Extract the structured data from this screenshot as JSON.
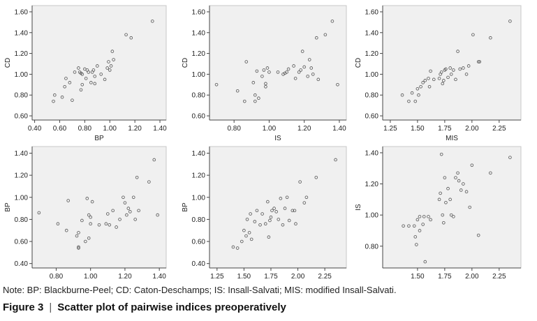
{
  "note": "Note: BP: Blackburne-Peel; CD: Caton-Deschamps; IS: Insall-Salvati; MIS: modified Insall-Salvati.",
  "caption": {
    "label": "Figure 3",
    "title": "Scatter plot of pairwise indices preoperatively"
  },
  "colors": {
    "plot_bg": "#f0f0f0",
    "point_stroke": "#555555",
    "frame": "#c8c8c8"
  },
  "chart_data": [
    {
      "type": "scatter",
      "xlabel": "BP",
      "ylabel": "CD",
      "xlim": [
        0.38,
        1.45
      ],
      "ylim": [
        0.56,
        1.66
      ],
      "xticks": [
        "0.40",
        "0.60",
        "0.80",
        "1.00",
        "1.20",
        "1.40"
      ],
      "yticks": [
        "0.60",
        "0.80",
        "1.00",
        "1.20",
        "1.40",
        "1.60"
      ],
      "points": [
        [
          0.55,
          0.74
        ],
        [
          0.56,
          0.8
        ],
        [
          0.62,
          0.78
        ],
        [
          0.64,
          0.88
        ],
        [
          0.65,
          0.96
        ],
        [
          0.68,
          0.92
        ],
        [
          0.7,
          0.75
        ],
        [
          0.72,
          1.02
        ],
        [
          0.75,
          1.06
        ],
        [
          0.76,
          1.02
        ],
        [
          0.77,
          1.01
        ],
        [
          0.77,
          0.85
        ],
        [
          0.78,
          0.9
        ],
        [
          0.78,
          1.0
        ],
        [
          0.8,
          1.05
        ],
        [
          0.81,
          0.96
        ],
        [
          0.82,
          1.04
        ],
        [
          0.83,
          1.02
        ],
        [
          0.85,
          0.92
        ],
        [
          0.86,
          1.02
        ],
        [
          0.87,
          1.04
        ],
        [
          0.88,
          0.98
        ],
        [
          0.88,
          0.91
        ],
        [
          0.9,
          1.08
        ],
        [
          0.93,
          1.0
        ],
        [
          0.96,
          0.95
        ],
        [
          0.98,
          1.06
        ],
        [
          0.99,
          1.12
        ],
        [
          1.0,
          1.04
        ],
        [
          1.01,
          1.08
        ],
        [
          1.02,
          1.22
        ],
        [
          1.03,
          1.14
        ],
        [
          1.13,
          1.38
        ],
        [
          1.17,
          1.35
        ],
        [
          1.34,
          1.51
        ]
      ]
    },
    {
      "type": "scatter",
      "xlabel": "IS",
      "ylabel": "CD",
      "xlim": [
        0.66,
        1.44
      ],
      "ylim": [
        0.56,
        1.66
      ],
      "xticks": [
        "0.80",
        "1.00",
        "1.20",
        "1.40"
      ],
      "yticks": [
        "0.60",
        "0.80",
        "1.00",
        "1.20",
        "1.40",
        "1.60"
      ],
      "points": [
        [
          0.7,
          0.9
        ],
        [
          0.82,
          0.84
        ],
        [
          0.86,
          0.74
        ],
        [
          0.87,
          1.12
        ],
        [
          0.91,
          0.92
        ],
        [
          0.92,
          0.8
        ],
        [
          0.92,
          0.74
        ],
        [
          0.93,
          1.03
        ],
        [
          0.94,
          0.77
        ],
        [
          0.96,
          0.98
        ],
        [
          0.97,
          1.04
        ],
        [
          0.98,
          0.91
        ],
        [
          0.98,
          0.88
        ],
        [
          0.99,
          1.06
        ],
        [
          1.0,
          1.02
        ],
        [
          1.05,
          1.02
        ],
        [
          1.08,
          1.0
        ],
        [
          1.09,
          1.01
        ],
        [
          1.1,
          1.02
        ],
        [
          1.11,
          1.05
        ],
        [
          1.14,
          1.08
        ],
        [
          1.15,
          0.96
        ],
        [
          1.17,
          1.02
        ],
        [
          1.18,
          1.04
        ],
        [
          1.19,
          1.22
        ],
        [
          1.2,
          1.07
        ],
        [
          1.22,
          0.98
        ],
        [
          1.23,
          1.14
        ],
        [
          1.24,
          1.06
        ],
        [
          1.25,
          1.0
        ],
        [
          1.27,
          1.35
        ],
        [
          1.28,
          0.95
        ],
        [
          1.32,
          1.38
        ],
        [
          1.36,
          1.51
        ],
        [
          1.39,
          0.9
        ]
      ]
    },
    {
      "type": "scatter",
      "xlabel": "MIS",
      "ylabel": "CD",
      "xlim": [
        1.18,
        2.45
      ],
      "ylim": [
        0.56,
        1.66
      ],
      "xticks": [
        "1.25",
        "1.50",
        "1.75",
        "2.00",
        "2.25"
      ],
      "yticks": [
        "0.60",
        "0.80",
        "1.00",
        "1.20",
        "1.40",
        "1.60"
      ],
      "points": [
        [
          1.36,
          0.8
        ],
        [
          1.42,
          0.74
        ],
        [
          1.45,
          0.82
        ],
        [
          1.48,
          0.74
        ],
        [
          1.5,
          0.86
        ],
        [
          1.51,
          0.8
        ],
        [
          1.53,
          0.88
        ],
        [
          1.55,
          0.92
        ],
        [
          1.57,
          0.94
        ],
        [
          1.6,
          0.96
        ],
        [
          1.61,
          0.88
        ],
        [
          1.62,
          1.03
        ],
        [
          1.65,
          0.95
        ],
        [
          1.7,
          0.96
        ],
        [
          1.71,
          1.0
        ],
        [
          1.72,
          1.02
        ],
        [
          1.73,
          0.91
        ],
        [
          1.74,
          0.94
        ],
        [
          1.75,
          1.04
        ],
        [
          1.76,
          1.05
        ],
        [
          1.78,
          0.97
        ],
        [
          1.8,
          1.06
        ],
        [
          1.81,
          1.0
        ],
        [
          1.83,
          1.04
        ],
        [
          1.85,
          0.95
        ],
        [
          1.87,
          1.22
        ],
        [
          1.89,
          1.05
        ],
        [
          1.92,
          1.06
        ],
        [
          1.95,
          1.0
        ],
        [
          1.97,
          1.08
        ],
        [
          2.01,
          1.38
        ],
        [
          2.06,
          1.12
        ],
        [
          2.07,
          1.12
        ],
        [
          2.17,
          1.35
        ],
        [
          2.35,
          1.51
        ]
      ]
    },
    {
      "type": "scatter",
      "xlabel": "IS",
      "ylabel": "BP",
      "xlim": [
        0.66,
        1.44
      ],
      "ylim": [
        0.36,
        1.46
      ],
      "xticks": [
        "0.80",
        "1.00",
        "1.20",
        "1.40"
      ],
      "yticks": [
        "0.40",
        "0.60",
        "0.80",
        "1.00",
        "1.20",
        "1.40"
      ],
      "points": [
        [
          0.7,
          0.86
        ],
        [
          0.81,
          0.76
        ],
        [
          0.86,
          0.7
        ],
        [
          0.87,
          0.97
        ],
        [
          0.92,
          0.65
        ],
        [
          0.93,
          0.55
        ],
        [
          0.93,
          0.54
        ],
        [
          0.93,
          0.68
        ],
        [
          0.95,
          0.79
        ],
        [
          0.97,
          0.6
        ],
        [
          0.98,
          0.99
        ],
        [
          0.99,
          0.84
        ],
        [
          0.99,
          0.63
        ],
        [
          1.0,
          0.82
        ],
        [
          1.0,
          0.76
        ],
        [
          1.01,
          0.96
        ],
        [
          1.05,
          0.75
        ],
        [
          1.09,
          0.76
        ],
        [
          1.1,
          0.85
        ],
        [
          1.11,
          0.75
        ],
        [
          1.13,
          0.88
        ],
        [
          1.15,
          0.73
        ],
        [
          1.17,
          0.8
        ],
        [
          1.19,
          1.0
        ],
        [
          1.2,
          0.95
        ],
        [
          1.21,
          0.84
        ],
        [
          1.22,
          0.9
        ],
        [
          1.23,
          0.87
        ],
        [
          1.25,
          1.0
        ],
        [
          1.26,
          0.8
        ],
        [
          1.27,
          1.18
        ],
        [
          1.28,
          0.88
        ],
        [
          1.34,
          1.14
        ],
        [
          1.37,
          1.34
        ],
        [
          1.39,
          0.84
        ]
      ]
    },
    {
      "type": "scatter",
      "xlabel": "MIS",
      "ylabel": "BP",
      "xlim": [
        1.18,
        2.45
      ],
      "ylim": [
        0.36,
        1.46
      ],
      "xticks": [
        "1.25",
        "1.50",
        "1.75",
        "2.00",
        "2.25"
      ],
      "yticks": [
        "0.40",
        "0.60",
        "0.80",
        "1.00",
        "1.20",
        "1.40"
      ],
      "points": [
        [
          1.4,
          0.55
        ],
        [
          1.44,
          0.54
        ],
        [
          1.48,
          0.6
        ],
        [
          1.5,
          0.7
        ],
        [
          1.52,
          0.65
        ],
        [
          1.53,
          0.8
        ],
        [
          1.55,
          0.68
        ],
        [
          1.56,
          0.85
        ],
        [
          1.57,
          0.62
        ],
        [
          1.6,
          0.78
        ],
        [
          1.62,
          0.88
        ],
        [
          1.65,
          0.75
        ],
        [
          1.67,
          0.85
        ],
        [
          1.7,
          0.76
        ],
        [
          1.72,
          0.96
        ],
        [
          1.73,
          0.64
        ],
        [
          1.74,
          0.79
        ],
        [
          1.75,
          0.82
        ],
        [
          1.76,
          0.88
        ],
        [
          1.78,
          0.9
        ],
        [
          1.8,
          0.87
        ],
        [
          1.82,
          0.8
        ],
        [
          1.84,
          0.99
        ],
        [
          1.86,
          0.75
        ],
        [
          1.88,
          0.9
        ],
        [
          1.9,
          1.0
        ],
        [
          1.92,
          0.79
        ],
        [
          1.95,
          0.88
        ],
        [
          1.97,
          0.88
        ],
        [
          1.98,
          0.76
        ],
        [
          2.02,
          1.14
        ],
        [
          2.06,
          0.95
        ],
        [
          2.08,
          1.0
        ],
        [
          2.17,
          1.18
        ],
        [
          2.35,
          1.34
        ]
      ]
    },
    {
      "type": "scatter",
      "xlabel": "MIS",
      "ylabel": "IS",
      "xlim": [
        1.18,
        2.45
      ],
      "ylim": [
        0.66,
        1.44
      ],
      "xticks": [
        "1.50",
        "1.75",
        "2.00",
        "2.25"
      ],
      "yticks": [
        "0.80",
        "1.00",
        "1.20",
        "1.40"
      ],
      "points": [
        [
          1.37,
          0.93
        ],
        [
          1.42,
          0.93
        ],
        [
          1.47,
          0.93
        ],
        [
          1.48,
          0.86
        ],
        [
          1.49,
          0.81
        ],
        [
          1.5,
          0.97
        ],
        [
          1.52,
          0.99
        ],
        [
          1.52,
          0.9
        ],
        [
          1.55,
          0.94
        ],
        [
          1.56,
          0.99
        ],
        [
          1.57,
          0.7
        ],
        [
          1.6,
          0.99
        ],
        [
          1.62,
          0.97
        ],
        [
          1.7,
          1.1
        ],
        [
          1.71,
          1.14
        ],
        [
          1.72,
          1.39
        ],
        [
          1.73,
          1.0
        ],
        [
          1.74,
          0.95
        ],
        [
          1.75,
          1.24
        ],
        [
          1.76,
          1.08
        ],
        [
          1.78,
          1.17
        ],
        [
          1.8,
          1.1
        ],
        [
          1.81,
          1.0
        ],
        [
          1.83,
          0.99
        ],
        [
          1.85,
          1.24
        ],
        [
          1.87,
          1.27
        ],
        [
          1.88,
          1.22
        ],
        [
          1.9,
          1.16
        ],
        [
          1.92,
          1.2
        ],
        [
          1.95,
          1.15
        ],
        [
          1.98,
          1.05
        ],
        [
          2.0,
          1.32
        ],
        [
          2.06,
          0.87
        ],
        [
          2.17,
          1.27
        ],
        [
          2.35,
          1.37
        ]
      ]
    }
  ]
}
